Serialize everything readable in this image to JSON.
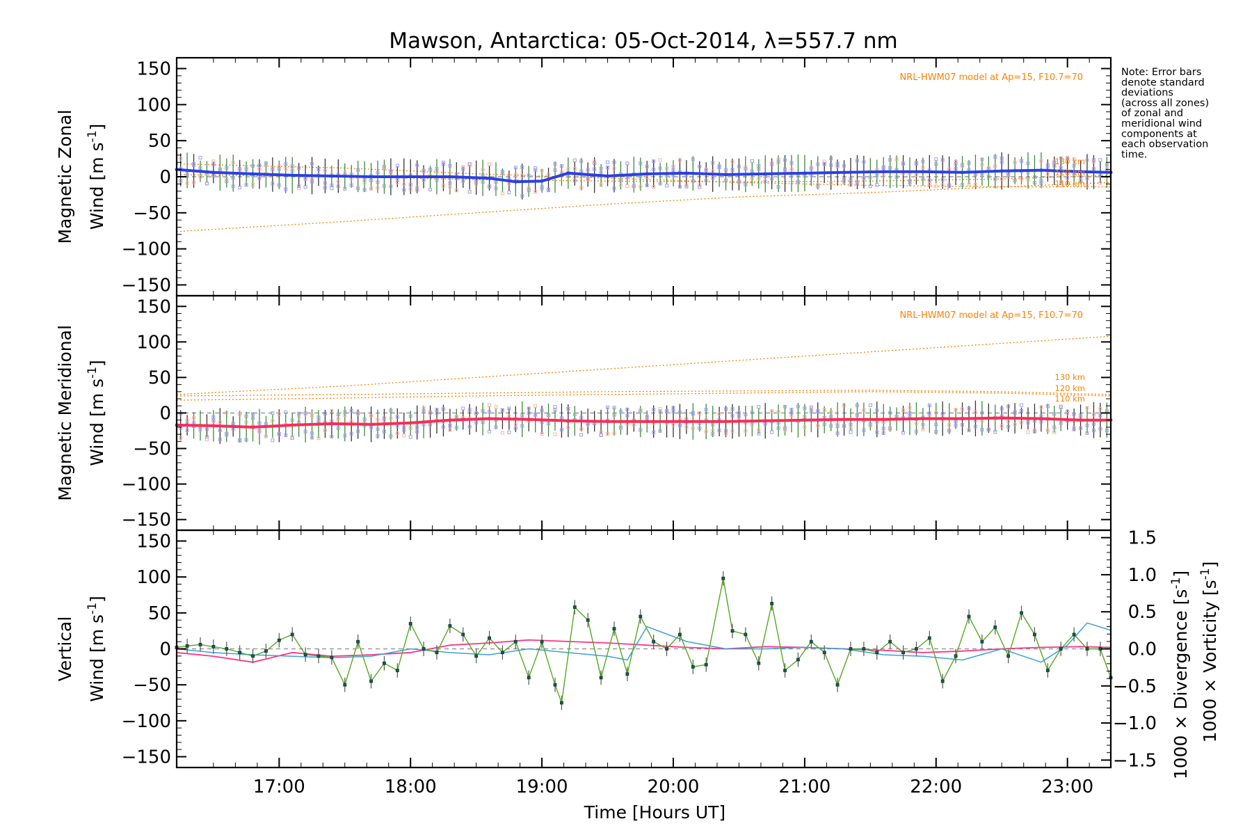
{
  "title": "Mawson, Antarctica: 05-Oct-2014, λ=557.7 nm",
  "note": {
    "lines": [
      "Note: Error bars",
      "denote standard",
      "deviations",
      "(across all zones)",
      "of zonal and",
      "meridional wind",
      "components at",
      "each observation",
      "time."
    ]
  },
  "colors": {
    "zonal": "#2a3fe8",
    "meridional": "#ff2a55",
    "vertical_axis": "#6fb62a",
    "vertical_line": "#55a820",
    "divergence": "#3aa0d8",
    "vorticity": "#ff3388",
    "model": "#ff8000",
    "zone_points": "#9f9fe8",
    "zone_points_warm": "#ffb0a0"
  },
  "chart_data": [
    {
      "type": "line",
      "panel": "zonal",
      "ylabel_1": "Magnetic Zonal",
      "ylabel_2": "Wind [m s",
      "ylabel_sup": "-1",
      "ylabel_end": "]",
      "xlim": [
        16.22,
        23.33
      ],
      "ylim": [
        -165,
        165
      ],
      "yticks": [
        150,
        100,
        50,
        0,
        -50,
        -100,
        -150
      ],
      "ytick_labels": [
        "150",
        "100",
        "50",
        "0",
        "−50",
        "−100",
        "−150"
      ],
      "model_label": "NRL-HWM07 model at Ap=15, F10.7=70",
      "model_series": [
        {
          "name": "130 km",
          "x": [
            16.22,
            17.5,
            18.5,
            19.5,
            20.5,
            21.5,
            22.5,
            23.33
          ],
          "y": [
            -76,
            -62,
            -50,
            -38,
            -28,
            -22,
            -14,
            -8
          ]
        },
        {
          "name": "120 km",
          "x": [
            16.22,
            17.5,
            18.5,
            19.5,
            20.5,
            21.5,
            22.5,
            23.33
          ],
          "y": [
            3,
            0,
            -4,
            -6,
            -7,
            -6,
            -3,
            2
          ]
        },
        {
          "name": "110 km",
          "x": [
            16.22,
            17.5,
            18.5,
            19.5,
            20.5,
            21.5,
            22.5,
            23.33
          ],
          "y": [
            18,
            12,
            4,
            -2,
            -8,
            -12,
            -14,
            -14
          ]
        }
      ],
      "series": [
        {
          "name": "Magnetic Zonal Wind",
          "x": [
            16.22,
            16.5,
            16.8,
            17.1,
            17.4,
            17.7,
            18.0,
            18.3,
            18.6,
            18.8,
            19.0,
            19.2,
            19.5,
            19.8,
            20.1,
            20.4,
            20.7,
            21.0,
            21.3,
            21.6,
            21.9,
            22.2,
            22.5,
            22.8,
            23.1,
            23.33
          ],
          "y": [
            10,
            6,
            4,
            2,
            1,
            0,
            0,
            0,
            -2,
            -7,
            -6,
            5,
            1,
            4,
            5,
            3,
            4,
            5,
            6,
            7,
            7,
            6,
            8,
            9,
            7,
            6
          ]
        }
      ]
    },
    {
      "type": "line",
      "panel": "meridional",
      "ylabel_1": "Magnetic Meridional",
      "ylabel_2": "Wind [m s",
      "ylabel_sup": "-1",
      "ylabel_end": "]",
      "xlim": [
        16.22,
        23.33
      ],
      "ylim": [
        -165,
        165
      ],
      "yticks": [
        150,
        100,
        50,
        0,
        -50,
        -100,
        -150
      ],
      "ytick_labels": [
        "150",
        "100",
        "50",
        "0",
        "−50",
        "−100",
        "−150"
      ],
      "model_label": "NRL-HWM07 model at Ap=15, F10.7=70",
      "model_series": [
        {
          "name": "130 km",
          "x": [
            16.22,
            17.5,
            18.5,
            19.5,
            20.5,
            21.5,
            22.5,
            23.33
          ],
          "y": [
            26,
            38,
            50,
            62,
            74,
            86,
            98,
            108
          ]
        },
        {
          "name": "120 km",
          "x": [
            16.22,
            17.5,
            18.5,
            19.5,
            20.5,
            21.5,
            22.5,
            23.33
          ],
          "y": [
            24,
            26,
            28,
            30,
            31,
            32,
            30,
            26
          ]
        },
        {
          "name": "110 km",
          "x": [
            16.22,
            17.5,
            18.5,
            19.5,
            20.5,
            21.5,
            22.5,
            23.33
          ],
          "y": [
            18,
            21,
            24,
            26,
            28,
            30,
            28,
            24
          ]
        }
      ],
      "series": [
        {
          "name": "Magnetic Meridional Wind",
          "x": [
            16.22,
            16.5,
            16.8,
            17.1,
            17.4,
            17.7,
            18.0,
            18.3,
            18.6,
            18.9,
            19.2,
            19.5,
            19.8,
            20.1,
            20.4,
            20.7,
            21.0,
            21.3,
            21.6,
            21.9,
            22.2,
            22.5,
            22.8,
            23.1,
            23.33
          ],
          "y": [
            -17,
            -18,
            -20,
            -17,
            -15,
            -16,
            -14,
            -10,
            -8,
            -9,
            -11,
            -12,
            -12,
            -12,
            -12,
            -11,
            -10,
            -9,
            -9,
            -8,
            -8,
            -7,
            -8,
            -10,
            -10
          ]
        }
      ]
    },
    {
      "type": "line",
      "panel": "vertical",
      "ylabel_1": "Vertical",
      "ylabel_2": "Wind [m s",
      "ylabel_sup": "-1",
      "ylabel_end": "]",
      "right_label_div": "1000 × Divergence [s",
      "right_label_vort": "1000 × Vorticity [s",
      "right_sup": "-1",
      "right_end": "]",
      "xlim": [
        16.22,
        23.33
      ],
      "ylim": [
        -165,
        165
      ],
      "yticks": [
        150,
        100,
        50,
        0,
        -50,
        -100,
        -150
      ],
      "ytick_labels": [
        "150",
        "100",
        "50",
        "0",
        "−50",
        "−100",
        "−150"
      ],
      "y2lim": [
        -1.6,
        1.6
      ],
      "y2ticks": [
        1.5,
        1.0,
        0.5,
        0.0,
        -0.5,
        -1.0,
        -1.5
      ],
      "y2tick_labels": [
        "1.5",
        "1.0",
        "0.5",
        "0.0",
        "−0.5",
        "−1.0",
        "−1.5"
      ],
      "xticks": [
        17,
        18,
        19,
        20,
        21,
        22,
        23
      ],
      "xtick_labels": [
        "17:00",
        "18:00",
        "19:00",
        "20:00",
        "21:00",
        "22:00",
        "23:00"
      ],
      "xlabel": "Time [Hours UT]",
      "series": [
        {
          "name": "Vertical Wind",
          "x": [
            16.22,
            16.3,
            16.4,
            16.5,
            16.6,
            16.7,
            16.8,
            16.9,
            17.0,
            17.1,
            17.2,
            17.3,
            17.4,
            17.5,
            17.6,
            17.7,
            17.8,
            17.9,
            18.0,
            18.1,
            18.2,
            18.3,
            18.4,
            18.5,
            18.6,
            18.7,
            18.8,
            18.9,
            19.0,
            19.1,
            19.15,
            19.25,
            19.35,
            19.45,
            19.55,
            19.65,
            19.75,
            19.85,
            19.95,
            20.05,
            20.15,
            20.25,
            20.38,
            20.45,
            20.55,
            20.65,
            20.75,
            20.85,
            20.95,
            21.05,
            21.15,
            21.25,
            21.35,
            21.45,
            21.55,
            21.65,
            21.75,
            21.85,
            21.95,
            22.05,
            22.15,
            22.25,
            22.35,
            22.45,
            22.55,
            22.65,
            22.75,
            22.85,
            22.95,
            23.05,
            23.15,
            23.25,
            23.33
          ],
          "y": [
            2,
            4,
            6,
            3,
            0,
            -5,
            -10,
            -3,
            12,
            20,
            -8,
            -10,
            -12,
            -50,
            10,
            -45,
            -20,
            -30,
            35,
            0,
            -5,
            32,
            20,
            -10,
            15,
            -5,
            10,
            -40,
            10,
            -50,
            -75,
            58,
            40,
            -40,
            28,
            -35,
            45,
            10,
            0,
            20,
            -25,
            -22,
            98,
            25,
            20,
            -20,
            63,
            -30,
            -15,
            10,
            -5,
            -50,
            0,
            0,
            -5,
            10,
            -5,
            0,
            15,
            -45,
            -10,
            45,
            10,
            30,
            -10,
            50,
            20,
            -30,
            0,
            20,
            0,
            0,
            -40
          ]
        },
        {
          "name": "1000 × Divergence",
          "axis": "right",
          "x": [
            16.22,
            16.5,
            16.8,
            17.1,
            17.4,
            17.7,
            18.0,
            18.3,
            18.6,
            18.9,
            19.2,
            19.5,
            19.65,
            19.8,
            20.1,
            20.4,
            20.7,
            21.0,
            21.3,
            21.6,
            21.9,
            22.2,
            22.5,
            22.8,
            23.0,
            23.15,
            23.33
          ],
          "y": [
            0.0,
            -0.05,
            -0.08,
            -0.1,
            -0.12,
            -0.1,
            0.0,
            -0.05,
            -0.08,
            0.0,
            -0.05,
            -0.1,
            -0.15,
            0.3,
            0.1,
            0.0,
            0.0,
            0.02,
            0.0,
            -0.08,
            -0.1,
            -0.15,
            0.0,
            -0.18,
            0.05,
            0.35,
            0.25
          ]
        },
        {
          "name": "1000 × Vorticity",
          "axis": "right",
          "x": [
            16.22,
            16.5,
            16.8,
            17.1,
            17.4,
            17.7,
            18.0,
            18.3,
            18.6,
            18.9,
            19.2,
            19.5,
            19.8,
            20.1,
            20.4,
            20.7,
            21.0,
            21.3,
            21.6,
            21.9,
            22.2,
            22.5,
            22.8,
            23.1,
            23.33
          ],
          "y": [
            -0.05,
            -0.1,
            -0.18,
            -0.05,
            -0.1,
            -0.08,
            -0.05,
            0.05,
            0.08,
            0.12,
            0.1,
            0.08,
            0.05,
            0.02,
            0.0,
            0.03,
            0.02,
            0.0,
            -0.02,
            -0.05,
            -0.03,
            0.0,
            0.02,
            0.03,
            0.02
          ]
        }
      ]
    }
  ]
}
